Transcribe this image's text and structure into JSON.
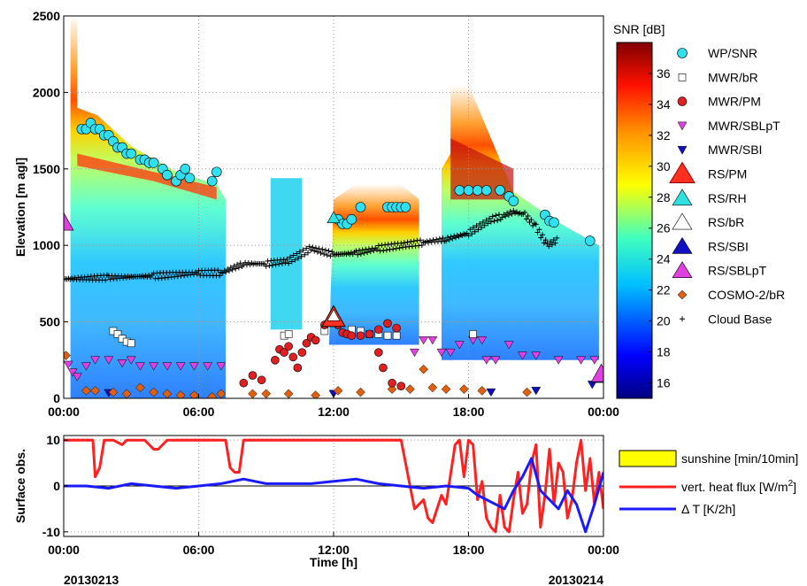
{
  "chart_data": [
    {
      "type": "heatmap",
      "ylabel": "Elevation [m agl]",
      "ylim": [
        0,
        2500
      ],
      "yticks": [
        "0",
        "500",
        "1000",
        "1500",
        "2000",
        "2500"
      ],
      "xticks": [
        "00:00",
        "06:00",
        "12:00",
        "18:00",
        "00:00"
      ],
      "colorbar": {
        "label": "SNR [dB]",
        "range": [
          15,
          38
        ],
        "ticks": [
          "16",
          "18",
          "20",
          "22",
          "24",
          "26",
          "28",
          "30",
          "32",
          "34",
          "36"
        ]
      },
      "legend": [
        "WP/SNR",
        "MWR/bR",
        "MWR/PM",
        "MWR/SBLpT",
        "MWR/SBI",
        "RS/PM",
        "RS/RH",
        "RS/bR",
        "RS/SBI",
        "RS/SBLpT",
        "COSMO-2/bR",
        "Cloud Base"
      ],
      "series": {
        "wp_snr": [
          [
            0.8,
            1760
          ],
          [
            1.0,
            1760
          ],
          [
            1.2,
            1800
          ],
          [
            1.4,
            1760
          ],
          [
            1.6,
            1760
          ],
          [
            1.8,
            1720
          ],
          [
            2.0,
            1720
          ],
          [
            2.2,
            1680
          ],
          [
            2.4,
            1640
          ],
          [
            2.6,
            1640
          ],
          [
            2.8,
            1600
          ],
          [
            3.0,
            1600
          ],
          [
            3.4,
            1560
          ],
          [
            3.6,
            1560
          ],
          [
            3.8,
            1540
          ],
          [
            4.0,
            1540
          ],
          [
            4.4,
            1500
          ],
          [
            4.6,
            1460
          ],
          [
            5.0,
            1420
          ],
          [
            5.2,
            1460
          ],
          [
            5.4,
            1500
          ],
          [
            5.6,
            1440
          ],
          [
            6.6,
            1420
          ],
          [
            6.8,
            1480
          ],
          [
            12.2,
            1170
          ],
          [
            12.4,
            1140
          ],
          [
            12.6,
            1140
          ],
          [
            12.8,
            1170
          ],
          [
            13.2,
            1250
          ],
          [
            14.4,
            1250
          ],
          [
            14.6,
            1250
          ],
          [
            14.8,
            1250
          ],
          [
            15.0,
            1250
          ],
          [
            15.2,
            1250
          ],
          [
            17.6,
            1360
          ],
          [
            18.0,
            1360
          ],
          [
            18.4,
            1360
          ],
          [
            18.8,
            1360
          ],
          [
            19.4,
            1360
          ],
          [
            19.8,
            1320
          ],
          [
            20.0,
            1290
          ],
          [
            21.4,
            1200
          ],
          [
            21.6,
            1160
          ],
          [
            21.8,
            1150
          ],
          [
            23.4,
            1030
          ]
        ],
        "mwr_br": [
          [
            2.2,
            440
          ],
          [
            2.4,
            420
          ],
          [
            2.6,
            390
          ],
          [
            2.8,
            370
          ],
          [
            3.0,
            360
          ],
          [
            9.8,
            410
          ],
          [
            10.0,
            420
          ],
          [
            11.6,
            440
          ],
          [
            12.8,
            450
          ],
          [
            13.2,
            440
          ],
          [
            13.6,
            420
          ],
          [
            14.0,
            420
          ],
          [
            14.4,
            410
          ],
          [
            14.8,
            410
          ],
          [
            18.2,
            420
          ]
        ],
        "mwr_pm": [
          [
            8.0,
            100
          ],
          [
            8.4,
            150
          ],
          [
            8.8,
            120
          ],
          [
            9.4,
            250
          ],
          [
            9.6,
            320
          ],
          [
            9.8,
            300
          ],
          [
            10.0,
            340
          ],
          [
            10.2,
            270
          ],
          [
            10.4,
            200
          ],
          [
            10.6,
            300
          ],
          [
            10.8,
            360
          ],
          [
            11.0,
            400
          ],
          [
            11.2,
            380
          ],
          [
            11.6,
            480
          ],
          [
            12.2,
            480
          ],
          [
            12.4,
            430
          ],
          [
            12.6,
            420
          ],
          [
            12.8,
            410
          ],
          [
            13.2,
            410
          ],
          [
            13.6,
            420
          ],
          [
            14.0,
            450
          ],
          [
            14.4,
            490
          ],
          [
            14.8,
            460
          ],
          [
            14.0,
            300
          ],
          [
            14.2,
            200
          ],
          [
            14.6,
            100
          ],
          [
            15.0,
            80
          ]
        ],
        "mwr_sblpt": [
          [
            0.2,
            220
          ],
          [
            0.4,
            170
          ],
          [
            0.6,
            140
          ],
          [
            1.0,
            210
          ],
          [
            1.4,
            250
          ],
          [
            2.0,
            250
          ],
          [
            2.6,
            230
          ],
          [
            3.0,
            250
          ],
          [
            3.4,
            210
          ],
          [
            4.0,
            210
          ],
          [
            4.6,
            210
          ],
          [
            5.2,
            210
          ],
          [
            5.8,
            210
          ],
          [
            6.4,
            210
          ],
          [
            7.0,
            210
          ],
          [
            15.6,
            300
          ],
          [
            16.0,
            380
          ],
          [
            16.4,
            380
          ],
          [
            16.8,
            300
          ],
          [
            17.2,
            300
          ],
          [
            17.6,
            350
          ],
          [
            18.2,
            380
          ],
          [
            18.6,
            380
          ],
          [
            18.8,
            250
          ],
          [
            19.2,
            250
          ],
          [
            19.8,
            350
          ],
          [
            20.4,
            280
          ],
          [
            21.0,
            280
          ],
          [
            22.0,
            250
          ],
          [
            23.0,
            250
          ],
          [
            23.6,
            250
          ]
        ],
        "mwr_sbi": [
          [
            2.0,
            35
          ],
          [
            12.0,
            30
          ],
          [
            19.0,
            40
          ],
          [
            21.0,
            50
          ],
          [
            23.5,
            90
          ]
        ],
        "rs_pm": [
          [
            12.0,
            530
          ]
        ],
        "rs_rh": [
          [
            12.0,
            1180
          ]
        ],
        "rs_br": [
          [
            12.0,
            540
          ]
        ],
        "rs_sbi": [
          [
            23.9,
            150
          ]
        ],
        "rs_sblpt": [
          [
            0.0,
            1150
          ],
          [
            23.9,
            160
          ]
        ],
        "cosmo": [
          [
            0.1,
            280
          ],
          [
            1.0,
            50
          ],
          [
            1.4,
            50
          ],
          [
            2.2,
            40
          ],
          [
            2.8,
            30
          ],
          [
            3.4,
            70
          ],
          [
            4.0,
            40
          ],
          [
            4.6,
            30
          ],
          [
            5.2,
            20
          ],
          [
            5.8,
            20
          ],
          [
            6.6,
            10
          ],
          [
            7.0,
            30
          ],
          [
            8.4,
            30
          ],
          [
            9.0,
            30
          ],
          [
            10.0,
            30
          ],
          [
            11.2,
            20
          ],
          [
            12.2,
            50
          ],
          [
            13.2,
            40
          ],
          [
            14.6,
            60
          ],
          [
            15.4,
            60
          ],
          [
            16.0,
            190
          ],
          [
            16.4,
            70
          ],
          [
            17.0,
            60
          ],
          [
            17.8,
            60
          ],
          [
            18.6,
            50
          ],
          [
            20.6,
            40
          ]
        ],
        "cloud_base": [
          [
            0.0,
            780
          ],
          [
            2.0,
            790
          ],
          [
            4.0,
            800
          ],
          [
            6.0,
            820
          ],
          [
            7.0,
            820
          ],
          [
            8.0,
            880
          ],
          [
            9.0,
            880
          ],
          [
            10.0,
            900
          ],
          [
            11.0,
            980
          ],
          [
            12.0,
            940
          ],
          [
            13.0,
            950
          ],
          [
            14.0,
            980
          ],
          [
            15.0,
            1000
          ],
          [
            16.0,
            1020
          ],
          [
            17.0,
            1040
          ],
          [
            18.0,
            1080
          ],
          [
            19.0,
            1170
          ],
          [
            19.5,
            1190
          ],
          [
            20.0,
            1220
          ],
          [
            20.5,
            1200
          ],
          [
            21.0,
            1120
          ],
          [
            21.5,
            1000
          ],
          [
            22.0,
            1040
          ]
        ]
      }
    },
    {
      "type": "line",
      "xlabel": "Time [h]",
      "ylabel": "Surface obs.",
      "ylim": [
        -11,
        11
      ],
      "yticks": [
        "-10",
        "0",
        "10"
      ],
      "xticks": [
        "00:00",
        "06:00",
        "12:00",
        "18:00",
        "00:00"
      ],
      "date_start": "20130213",
      "date_end": "20130214",
      "series": [
        {
          "name": "sunshine [min/10min]",
          "color": "#ffff00",
          "values": []
        },
        {
          "name": "vert. heat flux [W/m",
          "name_sup": "2",
          "name_tail": "]",
          "color": "#ff2020",
          "x": [
            0,
            1.3,
            1.4,
            1.6,
            1.8,
            2.0,
            2.2,
            2.6,
            2.8,
            3.2,
            3.6,
            4.0,
            4.2,
            4.6,
            5.0,
            6.8,
            7.2,
            7.4,
            7.6,
            7.8,
            8.0,
            15.0,
            15.4,
            15.6,
            16.0,
            16.2,
            16.4,
            16.8,
            17.0,
            17.4,
            17.6,
            17.8,
            18.0,
            18.2,
            18.4,
            18.6,
            18.8,
            19.0,
            19.2,
            19.4,
            19.6,
            19.8,
            20.0,
            20.2,
            20.4,
            20.6,
            20.8,
            21.0,
            21.2,
            21.4,
            21.6,
            21.8,
            22.0,
            22.2,
            22.4,
            22.6,
            22.8,
            23.0,
            23.2,
            23.4,
            23.6,
            23.8,
            24.0
          ],
          "values": [
            10,
            10,
            2,
            4,
            10,
            10,
            10,
            9,
            10,
            10,
            10,
            8,
            8,
            10,
            10,
            10,
            10,
            4,
            3,
            3,
            10,
            10,
            0,
            -5,
            -3,
            -7,
            -8,
            -2,
            -4,
            9,
            10,
            2,
            10,
            9,
            -3,
            1,
            -7,
            -9,
            -10,
            -2,
            -9,
            -10,
            -3,
            3,
            -6,
            -4,
            5,
            9,
            -9,
            -2,
            8,
            -4,
            5,
            3,
            -7,
            -3,
            5,
            10,
            -1,
            6,
            -4,
            3,
            -5
          ],
          "dotted_segments": [
            [
              0,
              1.3
            ],
            [
              5.0,
              6.8
            ],
            [
              8.0,
              15.0
            ]
          ]
        },
        {
          "name": "Δ T [K/2h]",
          "color": "#1a1aff",
          "x": [
            0,
            1,
            2,
            3,
            4,
            5,
            6,
            7,
            8,
            9,
            10,
            11,
            12,
            13,
            14,
            15,
            16,
            17,
            18,
            18.4,
            18.8,
            19.2,
            19.6,
            20.0,
            20.4,
            20.8,
            21.2,
            21.6,
            22.0,
            22.4,
            22.8,
            23.2,
            23.6,
            24.0
          ],
          "values": [
            0,
            0,
            -0.5,
            0.5,
            0,
            -0.5,
            0,
            0.5,
            1.5,
            0.5,
            0.5,
            0.5,
            1,
            1.5,
            0.5,
            0,
            -0.5,
            0,
            -0.5,
            -2,
            -3,
            -4,
            -5,
            -1,
            2,
            6,
            -1,
            -3,
            -5,
            -1,
            -4,
            -10,
            -4,
            3
          ]
        }
      ]
    }
  ]
}
